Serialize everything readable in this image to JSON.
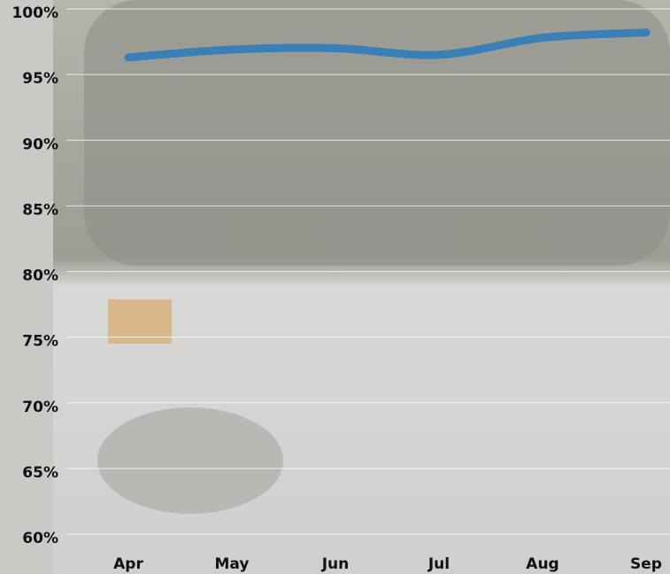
{
  "chart_data": {
    "type": "line",
    "categories": [
      "Apr",
      "May",
      "Jun",
      "Jul",
      "Aug",
      "Sep"
    ],
    "series": [
      {
        "color": "#3a7fb5",
        "values": [
          96.3,
          96.9,
          97.0,
          96.5,
          97.8,
          98.2
        ]
      }
    ],
    "ylim": [
      60,
      100
    ],
    "yticks": [
      {
        "value": 60,
        "label": "60%"
      },
      {
        "value": 65,
        "label": "65%"
      },
      {
        "value": 70,
        "label": "70%"
      },
      {
        "value": 75,
        "label": "75%"
      },
      {
        "value": 80,
        "label": "80%"
      },
      {
        "value": 85,
        "label": "85%"
      },
      {
        "value": 90,
        "label": "90%"
      },
      {
        "value": 95,
        "label": "95%"
      },
      {
        "value": 100,
        "label": "100%"
      }
    ],
    "grid": true
  }
}
